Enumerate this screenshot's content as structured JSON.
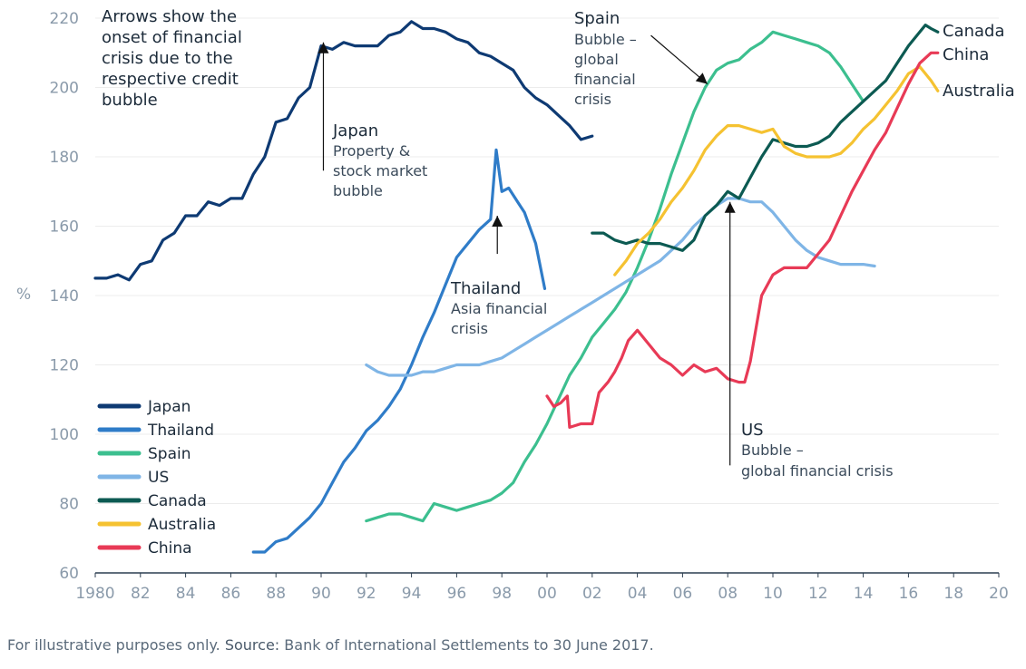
{
  "chart_data": {
    "type": "line",
    "ylabel": "%",
    "xlim": [
      1980,
      2020
    ],
    "ylim": [
      60,
      220
    ],
    "yticks": [
      60,
      80,
      100,
      120,
      140,
      160,
      180,
      200,
      220
    ],
    "xticks": [
      {
        "value": 1980,
        "label": "1980"
      },
      {
        "value": 1982,
        "label": "82"
      },
      {
        "value": 1984,
        "label": "84"
      },
      {
        "value": 1986,
        "label": "86"
      },
      {
        "value": 1988,
        "label": "88"
      },
      {
        "value": 1990,
        "label": "90"
      },
      {
        "value": 1992,
        "label": "92"
      },
      {
        "value": 1994,
        "label": "94"
      },
      {
        "value": 1996,
        "label": "96"
      },
      {
        "value": 1998,
        "label": "98"
      },
      {
        "value": 2000,
        "label": "00"
      },
      {
        "value": 2002,
        "label": "02"
      },
      {
        "value": 2004,
        "label": "04"
      },
      {
        "value": 2006,
        "label": "06"
      },
      {
        "value": 2008,
        "label": "08"
      },
      {
        "value": 2010,
        "label": "10"
      },
      {
        "value": 2012,
        "label": "12"
      },
      {
        "value": 2014,
        "label": "14"
      },
      {
        "value": 2016,
        "label": "16"
      },
      {
        "value": 2018,
        "label": "18"
      },
      {
        "value": 2020,
        "label": "20"
      }
    ],
    "series": [
      {
        "name": "Japan",
        "color": "#0e3a73",
        "end_label": "",
        "points": [
          [
            1980,
            145
          ],
          [
            1980.5,
            145
          ],
          [
            1981,
            146
          ],
          [
            1981.5,
            144.5
          ],
          [
            1982,
            149
          ],
          [
            1982.5,
            150
          ],
          [
            1983,
            156
          ],
          [
            1983.5,
            158
          ],
          [
            1984,
            163
          ],
          [
            1984.5,
            163
          ],
          [
            1985,
            167
          ],
          [
            1985.5,
            166
          ],
          [
            1986,
            168
          ],
          [
            1986.5,
            168
          ],
          [
            1987,
            175
          ],
          [
            1987.5,
            180
          ],
          [
            1988,
            190
          ],
          [
            1988.5,
            191
          ],
          [
            1989,
            197
          ],
          [
            1989.5,
            200
          ],
          [
            1990,
            212
          ],
          [
            1990.5,
            211
          ],
          [
            1991,
            213
          ],
          [
            1991.5,
            212
          ],
          [
            1992,
            212
          ],
          [
            1992.5,
            212
          ],
          [
            1993,
            215
          ],
          [
            1993.5,
            216
          ],
          [
            1994,
            219
          ],
          [
            1994.5,
            217
          ],
          [
            1995,
            217
          ],
          [
            1995.5,
            216
          ],
          [
            1996,
            214
          ],
          [
            1996.5,
            213
          ],
          [
            1997,
            210
          ],
          [
            1997.5,
            209
          ],
          [
            1998,
            207
          ],
          [
            1998.5,
            205
          ],
          [
            1999,
            200
          ],
          [
            1999.5,
            197
          ],
          [
            2000,
            195
          ],
          [
            2000.5,
            192
          ],
          [
            2001,
            189
          ],
          [
            2001.5,
            185
          ],
          [
            2002,
            186
          ]
        ]
      },
      {
        "name": "Thailand",
        "color": "#2f7cc8",
        "end_label": "",
        "points": [
          [
            1987,
            66
          ],
          [
            1987.5,
            66
          ],
          [
            1988,
            69
          ],
          [
            1988.5,
            70
          ],
          [
            1989,
            73
          ],
          [
            1989.5,
            76
          ],
          [
            1990,
            80
          ],
          [
            1990.5,
            86
          ],
          [
            1991,
            92
          ],
          [
            1991.5,
            96
          ],
          [
            1992,
            101
          ],
          [
            1992.5,
            104
          ],
          [
            1993,
            108
          ],
          [
            1993.5,
            113
          ],
          [
            1994,
            120
          ],
          [
            1994.5,
            128
          ],
          [
            1995,
            135
          ],
          [
            1995.5,
            143
          ],
          [
            1996,
            151
          ],
          [
            1996.5,
            155
          ],
          [
            1997,
            159
          ],
          [
            1997.5,
            162
          ],
          [
            1997.75,
            182
          ],
          [
            1998,
            170
          ],
          [
            1998.3,
            171
          ],
          [
            1998.7,
            167
          ],
          [
            1999,
            164
          ],
          [
            1999.5,
            155
          ],
          [
            1999.9,
            142
          ]
        ]
      },
      {
        "name": "Spain",
        "color": "#3cbf8f",
        "end_label": "",
        "points": [
          [
            1992,
            75
          ],
          [
            1992.5,
            76
          ],
          [
            1993,
            77
          ],
          [
            1993.5,
            77
          ],
          [
            1994,
            76
          ],
          [
            1994.5,
            75
          ],
          [
            1995,
            80
          ],
          [
            1995.5,
            79
          ],
          [
            1996,
            78
          ],
          [
            1996.5,
            79
          ],
          [
            1997,
            80
          ],
          [
            1997.5,
            81
          ],
          [
            1998,
            83
          ],
          [
            1998.5,
            86
          ],
          [
            1999,
            92
          ],
          [
            1999.5,
            97
          ],
          [
            2000,
            103
          ],
          [
            2000.5,
            110
          ],
          [
            2001,
            117
          ],
          [
            2001.5,
            122
          ],
          [
            2002,
            128
          ],
          [
            2002.5,
            132
          ],
          [
            2003,
            136
          ],
          [
            2003.5,
            141
          ],
          [
            2004,
            148
          ],
          [
            2004.5,
            156
          ],
          [
            2005,
            165
          ],
          [
            2005.5,
            175
          ],
          [
            2006,
            184
          ],
          [
            2006.5,
            193
          ],
          [
            2007,
            200
          ],
          [
            2007.5,
            205
          ],
          [
            2008,
            207
          ],
          [
            2008.5,
            208
          ],
          [
            2009,
            211
          ],
          [
            2009.5,
            213
          ],
          [
            2010,
            216
          ],
          [
            2010.5,
            215
          ],
          [
            2011,
            214
          ],
          [
            2011.5,
            213
          ],
          [
            2012,
            212
          ],
          [
            2012.5,
            210
          ],
          [
            2013,
            206
          ],
          [
            2013.5,
            201
          ],
          [
            2014,
            196
          ]
        ]
      },
      {
        "name": "US",
        "color": "#7fb5e6",
        "end_label": "",
        "points": [
          [
            1992,
            120
          ],
          [
            1992.5,
            118
          ],
          [
            1993,
            117
          ],
          [
            1993.5,
            117
          ],
          [
            1994,
            117
          ],
          [
            1994.5,
            118
          ],
          [
            1995,
            118
          ],
          [
            1995.5,
            119
          ],
          [
            1996,
            120
          ],
          [
            1996.5,
            120
          ],
          [
            1997,
            120
          ],
          [
            1997.5,
            121
          ],
          [
            1998,
            122
          ],
          [
            1998.5,
            124
          ],
          [
            1999,
            126
          ],
          [
            1999.5,
            128
          ],
          [
            2000,
            130
          ],
          [
            2000.5,
            132
          ],
          [
            2001,
            134
          ],
          [
            2001.5,
            136
          ],
          [
            2002,
            138
          ],
          [
            2002.5,
            140
          ],
          [
            2003,
            142
          ],
          [
            2003.5,
            144
          ],
          [
            2004,
            146
          ],
          [
            2004.5,
            148
          ],
          [
            2005,
            150
          ],
          [
            2005.5,
            153
          ],
          [
            2006,
            156
          ],
          [
            2006.5,
            160
          ],
          [
            2007,
            163
          ],
          [
            2007.5,
            166
          ],
          [
            2008,
            168
          ],
          [
            2008.5,
            168
          ],
          [
            2009,
            167
          ],
          [
            2009.5,
            167
          ],
          [
            2010,
            164
          ],
          [
            2010.5,
            160
          ],
          [
            2011,
            156
          ],
          [
            2011.5,
            153
          ],
          [
            2012,
            151
          ],
          [
            2012.5,
            150
          ],
          [
            2013,
            149
          ],
          [
            2013.5,
            149
          ],
          [
            2014,
            149
          ],
          [
            2014.5,
            148.5
          ]
        ]
      },
      {
        "name": "Canada",
        "color": "#0c5a52",
        "end_label": "Canada",
        "points": [
          [
            2002,
            158
          ],
          [
            2002.5,
            158
          ],
          [
            2003,
            156
          ],
          [
            2003.5,
            155
          ],
          [
            2004,
            156
          ],
          [
            2004.5,
            155
          ],
          [
            2005,
            155
          ],
          [
            2005.5,
            154
          ],
          [
            2006,
            153
          ],
          [
            2006.5,
            156
          ],
          [
            2007,
            163
          ],
          [
            2007.5,
            166
          ],
          [
            2008,
            170
          ],
          [
            2008.5,
            168
          ],
          [
            2009,
            174
          ],
          [
            2009.5,
            180
          ],
          [
            2010,
            185
          ],
          [
            2010.5,
            184
          ],
          [
            2011,
            183
          ],
          [
            2011.5,
            183
          ],
          [
            2012,
            184
          ],
          [
            2012.5,
            186
          ],
          [
            2013,
            190
          ],
          [
            2013.5,
            193
          ],
          [
            2014,
            196
          ],
          [
            2014.5,
            199
          ],
          [
            2015,
            202
          ],
          [
            2015.5,
            207
          ],
          [
            2016,
            212
          ],
          [
            2016.5,
            216
          ],
          [
            2016.75,
            218
          ],
          [
            2017,
            217
          ],
          [
            2017.3,
            216
          ]
        ]
      },
      {
        "name": "Australia",
        "color": "#f5c231",
        "end_label": "Australia",
        "points": [
          [
            2003,
            146
          ],
          [
            2003.5,
            150
          ],
          [
            2004,
            155
          ],
          [
            2004.5,
            158
          ],
          [
            2005,
            162
          ],
          [
            2005.5,
            167
          ],
          [
            2006,
            171
          ],
          [
            2006.5,
            176
          ],
          [
            2007,
            182
          ],
          [
            2007.5,
            186
          ],
          [
            2008,
            189
          ],
          [
            2008.5,
            189
          ],
          [
            2009,
            188
          ],
          [
            2009.5,
            187
          ],
          [
            2010,
            188
          ],
          [
            2010.5,
            183
          ],
          [
            2011,
            181
          ],
          [
            2011.5,
            180
          ],
          [
            2012,
            180
          ],
          [
            2012.5,
            180
          ],
          [
            2013,
            181
          ],
          [
            2013.5,
            184
          ],
          [
            2014,
            188
          ],
          [
            2014.5,
            191
          ],
          [
            2015,
            195
          ],
          [
            2015.5,
            199
          ],
          [
            2016,
            204
          ],
          [
            2016.5,
            206
          ],
          [
            2017,
            202
          ],
          [
            2017.3,
            199
          ]
        ]
      },
      {
        "name": "China",
        "color": "#e83a56",
        "end_label": "China",
        "points": [
          [
            2000,
            111
          ],
          [
            2000.3,
            108
          ],
          [
            2000.6,
            109
          ],
          [
            2000.9,
            111
          ],
          [
            2001,
            102
          ],
          [
            2001.5,
            103
          ],
          [
            2002,
            103
          ],
          [
            2002.3,
            112
          ],
          [
            2002.7,
            115
          ],
          [
            2003,
            118
          ],
          [
            2003.3,
            122
          ],
          [
            2003.6,
            127
          ],
          [
            2004,
            130
          ],
          [
            2004.5,
            126
          ],
          [
            2005,
            122
          ],
          [
            2005.5,
            120
          ],
          [
            2006,
            117
          ],
          [
            2006.5,
            120
          ],
          [
            2007,
            118
          ],
          [
            2007.5,
            119
          ],
          [
            2008,
            116
          ],
          [
            2008.5,
            115
          ],
          [
            2008.75,
            115
          ],
          [
            2009,
            121
          ],
          [
            2009.5,
            140
          ],
          [
            2010,
            146
          ],
          [
            2010.5,
            148
          ],
          [
            2011,
            148
          ],
          [
            2011.5,
            148
          ],
          [
            2012,
            152
          ],
          [
            2012.5,
            156
          ],
          [
            2013,
            163
          ],
          [
            2013.5,
            170
          ],
          [
            2014,
            176
          ],
          [
            2014.5,
            182
          ],
          [
            2015,
            187
          ],
          [
            2015.5,
            194
          ],
          [
            2016,
            201
          ],
          [
            2016.5,
            207
          ],
          [
            2017,
            210
          ],
          [
            2017.3,
            210
          ]
        ]
      }
    ],
    "arrows": [
      {
        "id": "japan",
        "x": 1990.1,
        "y_from": 176,
        "y_to": 213
      },
      {
        "id": "thailand",
        "x": 1997.8,
        "y_from": 152,
        "y_to": 163
      },
      {
        "id": "us",
        "x": 2008.1,
        "y_from": 91,
        "y_to": 167
      },
      {
        "x1": 2004.6,
        "y1": 215,
        "x2": 2007.1,
        "y2": 201
      }
    ]
  },
  "annotations": {
    "intro": [
      "Arrows show the",
      "onset of financial",
      "crisis due to the",
      "respective credit",
      "bubble"
    ],
    "japan": {
      "title": "Japan",
      "lines": [
        "Property &",
        "stock market",
        "bubble"
      ]
    },
    "thailand": {
      "title": "Thailand",
      "lines": [
        "Asia financial",
        "crisis"
      ]
    },
    "spain": {
      "title": "Spain",
      "lines": [
        "Bubble –",
        "global",
        "financial",
        "crisis"
      ]
    },
    "us": {
      "title": "US",
      "lines": [
        "Bubble –",
        "global financial crisis"
      ]
    }
  },
  "footnote": {
    "prefix": "For illustrative purposes only.",
    "source_label": "Source:",
    "source_text": "Bank of International Settlements to 30 June 2017."
  }
}
